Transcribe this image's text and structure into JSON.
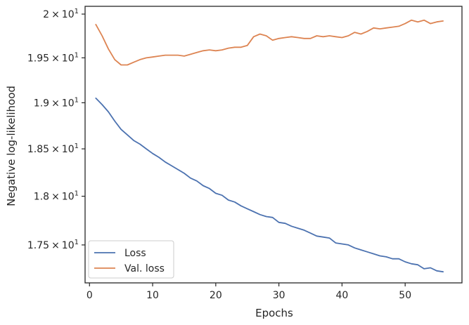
{
  "chart_data": {
    "type": "line",
    "xlabel": "Epochs",
    "ylabel": "Negative log-likelihood",
    "xlim": [
      -0.7,
      59.0
    ],
    "ylim": [
      17.12,
      20.09
    ],
    "x_ticks": [
      0,
      10,
      20,
      30,
      40,
      50
    ],
    "x_tick_labels": [
      "0",
      "10",
      "20",
      "30",
      "40",
      "50"
    ],
    "y_ticks": [
      17.5,
      18.0,
      18.5,
      19.0,
      19.5,
      20.0
    ],
    "y_tick_labels": [
      {
        "mantissa": "1.75",
        "times": "×",
        "base": "10",
        "exp": "1"
      },
      {
        "mantissa": "1.8",
        "times": "×",
        "base": "10",
        "exp": "1"
      },
      {
        "mantissa": "1.85",
        "times": "×",
        "base": "10",
        "exp": "1"
      },
      {
        "mantissa": "1.9",
        "times": "×",
        "base": "10",
        "exp": "1"
      },
      {
        "mantissa": "1.95",
        "times": "×",
        "base": "10",
        "exp": "1"
      },
      {
        "mantissa": "2",
        "times": "×",
        "base": "10",
        "exp": "1"
      }
    ],
    "y_scale": "log",
    "grid": false,
    "legend_position": "lower-left",
    "x": [
      1,
      2,
      3,
      4,
      5,
      6,
      7,
      8,
      9,
      10,
      11,
      12,
      13,
      14,
      15,
      16,
      17,
      18,
      19,
      20,
      21,
      22,
      23,
      24,
      25,
      26,
      27,
      28,
      29,
      30,
      31,
      32,
      33,
      34,
      35,
      36,
      37,
      38,
      39,
      40,
      41,
      42,
      43,
      44,
      45,
      46,
      47,
      48,
      49,
      50,
      51,
      52,
      53,
      54,
      55,
      56
    ],
    "series": [
      {
        "name": "Loss",
        "color": "#4c72b0",
        "values": [
          19.05,
          18.98,
          18.9,
          18.8,
          18.71,
          18.65,
          18.59,
          18.55,
          18.5,
          18.45,
          18.41,
          18.36,
          18.32,
          18.28,
          18.24,
          18.19,
          18.16,
          18.11,
          18.08,
          18.03,
          18.01,
          17.96,
          17.94,
          17.9,
          17.87,
          17.84,
          17.81,
          17.79,
          17.78,
          17.73,
          17.72,
          17.69,
          17.67,
          17.65,
          17.62,
          17.59,
          17.58,
          17.57,
          17.52,
          17.51,
          17.5,
          17.47,
          17.45,
          17.43,
          17.41,
          17.39,
          17.38,
          17.36,
          17.36,
          17.33,
          17.31,
          17.3,
          17.26,
          17.27,
          17.24,
          17.23
        ]
      },
      {
        "name": "Val. loss",
        "color": "#dd8452",
        "values": [
          19.88,
          19.75,
          19.6,
          19.48,
          19.42,
          19.42,
          19.45,
          19.48,
          19.5,
          19.51,
          19.52,
          19.53,
          19.53,
          19.53,
          19.52,
          19.54,
          19.56,
          19.58,
          19.59,
          19.58,
          19.59,
          19.61,
          19.62,
          19.62,
          19.64,
          19.74,
          19.77,
          19.75,
          19.7,
          19.72,
          19.73,
          19.74,
          19.73,
          19.72,
          19.72,
          19.75,
          19.74,
          19.75,
          19.74,
          19.73,
          19.75,
          19.79,
          19.77,
          19.8,
          19.84,
          19.83,
          19.84,
          19.85,
          19.86,
          19.89,
          19.93,
          19.91,
          19.93,
          19.89,
          19.91,
          19.92
        ]
      }
    ]
  }
}
